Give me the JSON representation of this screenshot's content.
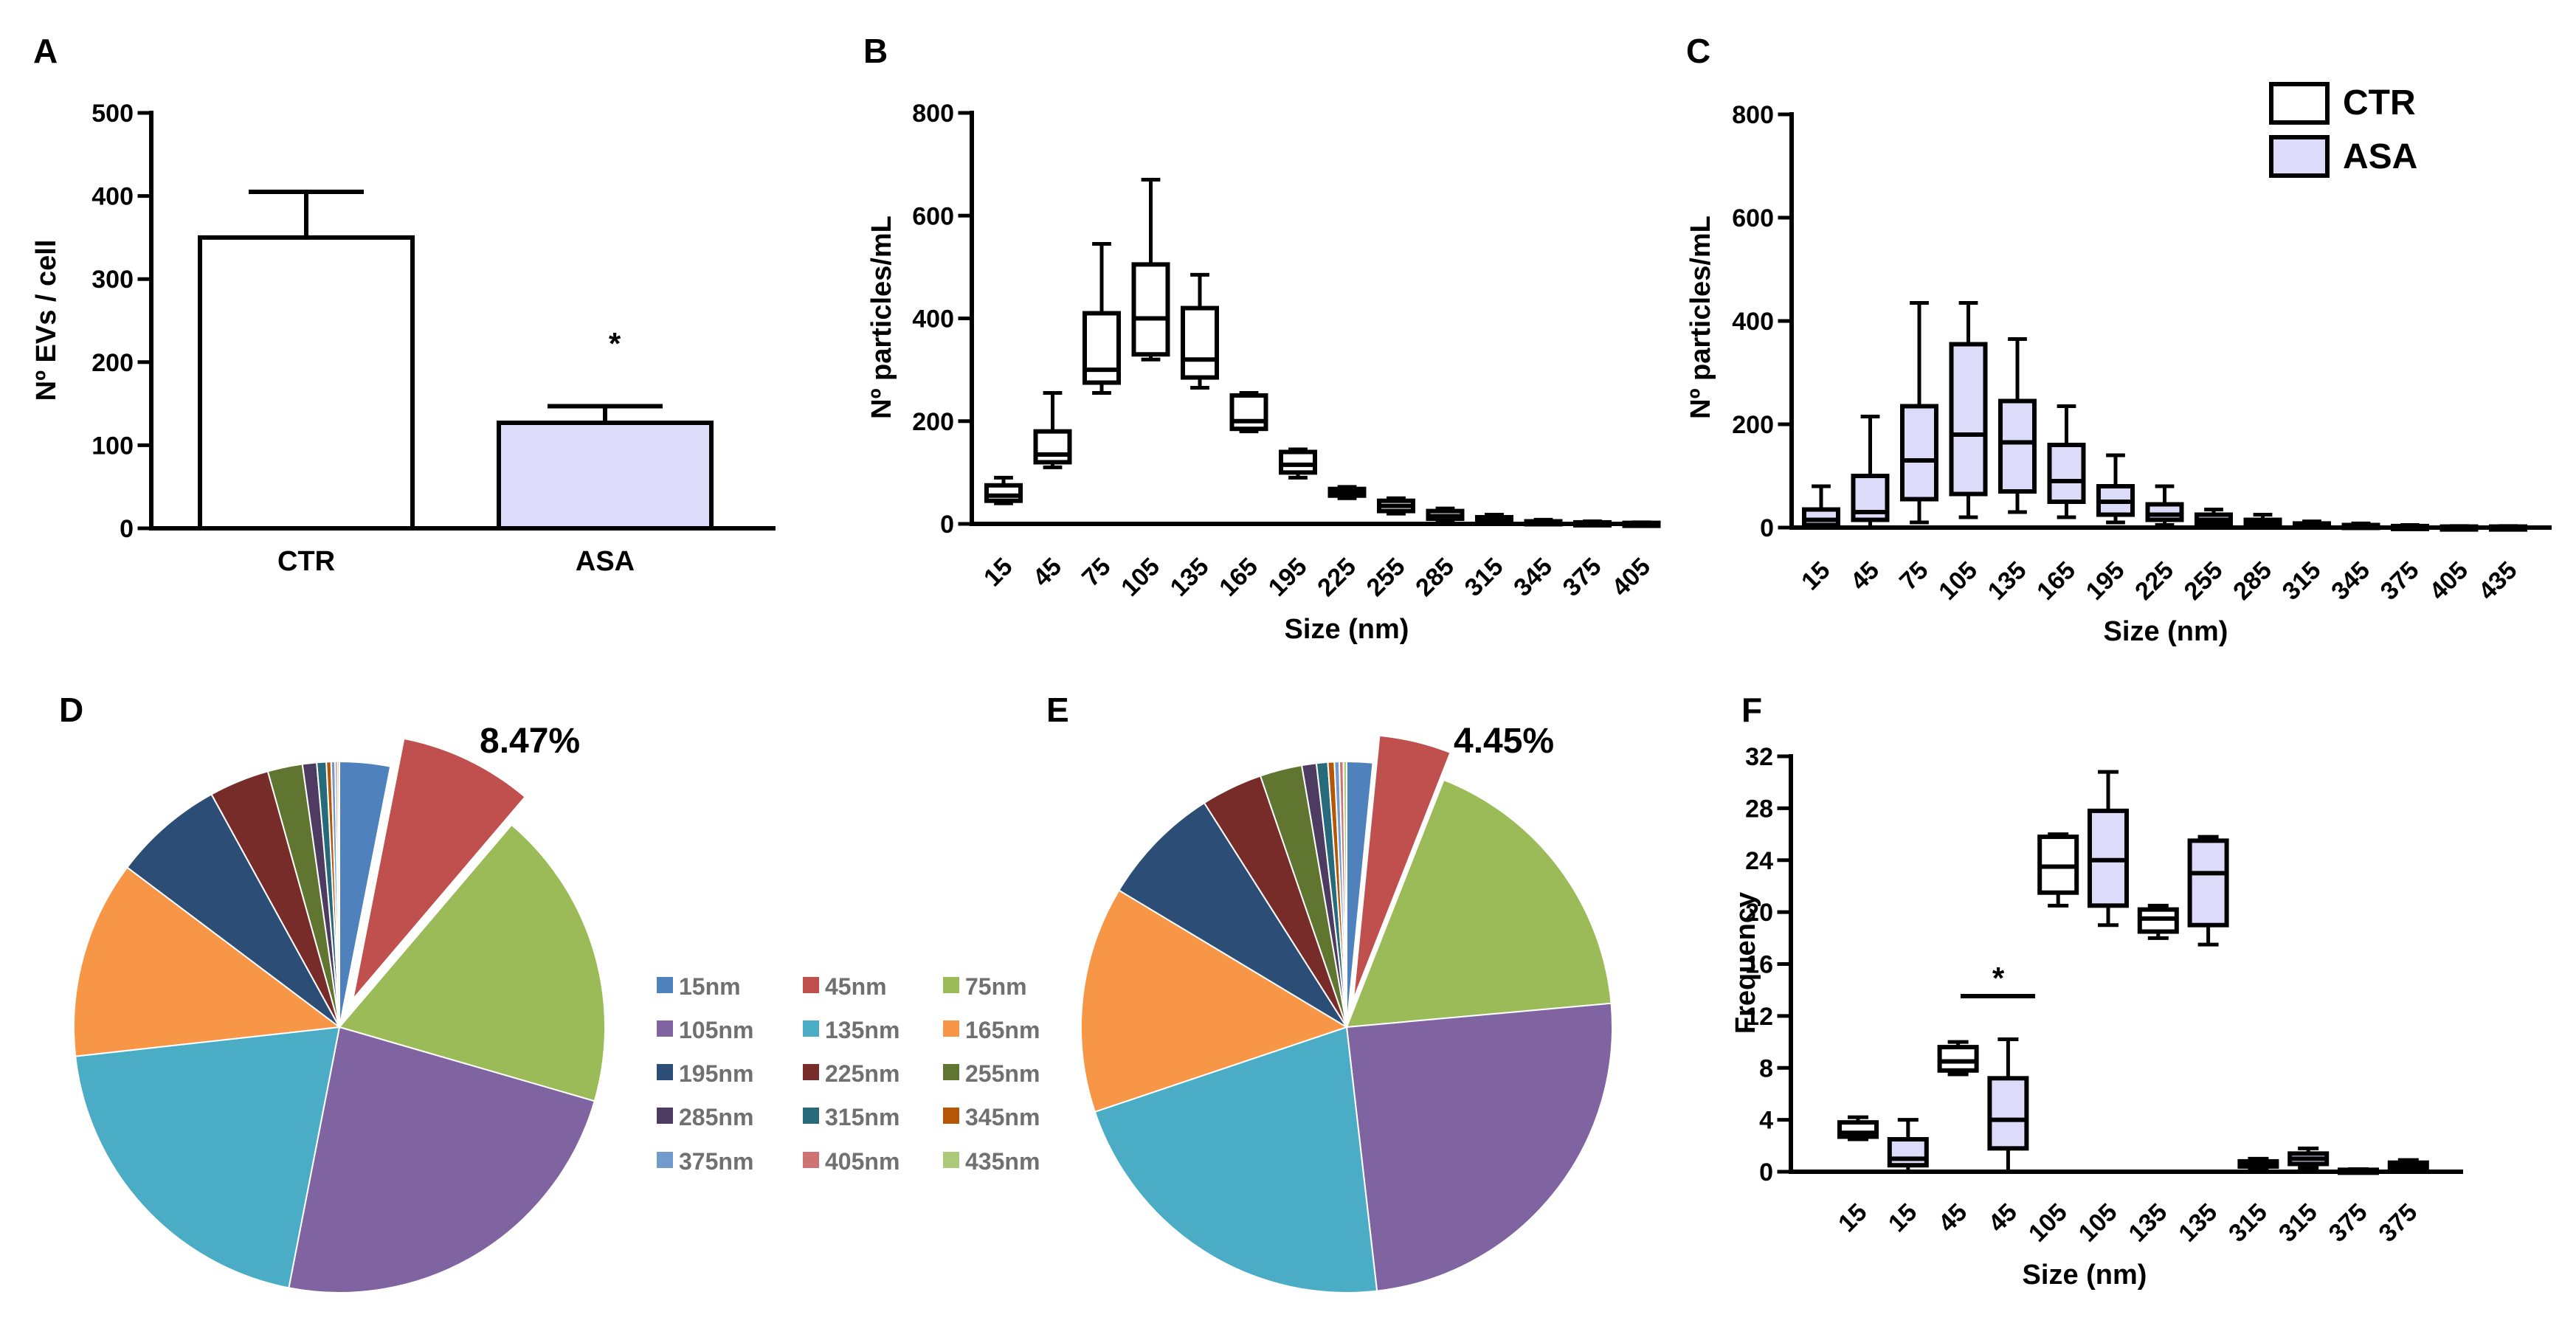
{
  "colors": {
    "ctr": "#ffffff",
    "asa": "#dcdcfa",
    "stroke": "#000000"
  },
  "chart_data": [
    {
      "panel": "A",
      "type": "bar",
      "ylabel": "Nº EVs / cell",
      "ylim": [
        0,
        500
      ],
      "yticks": [
        "0",
        "100",
        "200",
        "300",
        "400",
        "500"
      ],
      "categories": [
        "CTR",
        "ASA"
      ],
      "values": [
        350,
        127
      ],
      "errors": [
        55,
        20
      ],
      "annotation": "*"
    },
    {
      "panel": "B",
      "type": "box",
      "xlabel": "Size (nm)",
      "ylabel": "Nº particles/mL",
      "ylim": [
        0,
        800
      ],
      "yticks": [
        "0",
        "200",
        "400",
        "600",
        "800"
      ],
      "categories": [
        "15",
        "45",
        "75",
        "105",
        "135",
        "165",
        "195",
        "225",
        "255",
        "285",
        "315",
        "345",
        "375",
        "405"
      ],
      "boxes": [
        [
          40,
          45,
          55,
          75,
          90
        ],
        [
          110,
          120,
          135,
          180,
          255
        ],
        [
          255,
          275,
          300,
          410,
          545
        ],
        [
          320,
          330,
          400,
          505,
          670
        ],
        [
          265,
          285,
          320,
          420,
          485
        ],
        [
          180,
          185,
          200,
          250,
          255
        ],
        [
          90,
          100,
          115,
          140,
          145
        ],
        [
          50,
          55,
          62,
          68,
          72
        ],
        [
          20,
          25,
          35,
          45,
          50
        ],
        [
          5,
          10,
          15,
          25,
          30
        ],
        [
          2,
          5,
          9,
          13,
          18
        ],
        [
          0,
          1,
          3,
          5,
          8
        ],
        [
          0,
          0,
          1,
          3,
          5
        ],
        [
          0,
          0,
          1,
          2,
          3
        ]
      ]
    },
    {
      "panel": "C",
      "type": "box",
      "xlabel": "Size (nm)",
      "ylabel": "Nº particles/mL",
      "ylim": [
        0,
        800
      ],
      "yticks": [
        "0",
        "200",
        "400",
        "600",
        "800"
      ],
      "categories": [
        "15",
        "45",
        "75",
        "105",
        "135",
        "165",
        "195",
        "225",
        "255",
        "285",
        "315",
        "345",
        "375",
        "405",
        "435"
      ],
      "legend": [
        "CTR",
        "ASA"
      ],
      "boxes": [
        [
          0,
          5,
          15,
          35,
          80
        ],
        [
          0,
          15,
          30,
          100,
          215
        ],
        [
          10,
          55,
          130,
          235,
          435
        ],
        [
          20,
          65,
          180,
          355,
          435
        ],
        [
          30,
          70,
          165,
          245,
          365
        ],
        [
          20,
          50,
          90,
          160,
          235
        ],
        [
          10,
          25,
          50,
          80,
          140
        ],
        [
          5,
          15,
          25,
          45,
          80
        ],
        [
          2,
          8,
          15,
          25,
          35
        ],
        [
          0,
          3,
          8,
          15,
          25
        ],
        [
          0,
          1,
          4,
          8,
          12
        ],
        [
          0,
          1,
          3,
          5,
          8
        ],
        [
          0,
          0,
          1,
          3,
          5
        ],
        [
          0,
          0,
          1,
          2,
          3
        ],
        [
          0,
          0,
          1,
          2,
          3
        ]
      ]
    },
    {
      "panel": "D",
      "type": "pie",
      "highlight": "8.47%",
      "labels": [
        "15nm",
        "45nm",
        "75nm",
        "105nm",
        "135nm",
        "165nm",
        "195nm",
        "225nm",
        "255nm",
        "285nm",
        "315nm",
        "345nm",
        "375nm",
        "405nm",
        "435nm"
      ],
      "values": [
        3.2,
        8.47,
        19.0,
        24.5,
        21.0,
        12.5,
        7.0,
        3.8,
        2.2,
        0.9,
        0.6,
        0.3,
        0.25,
        0.15,
        0.12
      ],
      "slice_colors": [
        "#4f81bd",
        "#c0504d",
        "#9bbb59",
        "#8064a2",
        "#4bacc6",
        "#f79646",
        "#2c4d75",
        "#772c2a",
        "#5f7530",
        "#4d3b62",
        "#276a7c",
        "#b65708",
        "#729aca",
        "#cd7371",
        "#afc97a"
      ]
    },
    {
      "panel": "E",
      "type": "pie",
      "highlight": "4.45%",
      "values": [
        1.6,
        4.45,
        17.9,
        25.0,
        22.0,
        14.0,
        7.5,
        3.8,
        2.6,
        0.9,
        0.7,
        0.4,
        0.3,
        0.25,
        0.2
      ]
    },
    {
      "panel": "F",
      "type": "box",
      "xlabel": "Size (nm)",
      "ylabel": "Frequency",
      "ylim": [
        0,
        32
      ],
      "yticks": [
        "0",
        "4",
        "8",
        "12",
        "16",
        "20",
        "24",
        "28",
        "32"
      ],
      "categories": [
        "15",
        "15",
        "45",
        "45",
        "105",
        "105",
        "135",
        "135",
        "315",
        "315",
        "375",
        "375"
      ],
      "groups": [
        "CTR",
        "ASA",
        "CTR",
        "ASA",
        "CTR",
        "ASA",
        "CTR",
        "ASA",
        "CTR",
        "ASA",
        "CTR",
        "ASA"
      ],
      "boxes": [
        [
          2.5,
          2.7,
          3,
          3.8,
          4.2
        ],
        [
          0,
          0.5,
          1,
          2.5,
          4
        ],
        [
          7.5,
          7.8,
          8.5,
          9.6,
          10
        ],
        [
          0,
          1.8,
          4,
          7.2,
          10.2
        ],
        [
          20.5,
          21.5,
          23.5,
          25.8,
          26
        ],
        [
          19,
          20.5,
          24,
          27.8,
          30.8
        ],
        [
          18,
          18.5,
          19.5,
          20.2,
          20.5
        ],
        [
          17.5,
          19,
          23,
          25.5,
          25.8
        ],
        [
          0.2,
          0.4,
          0.6,
          0.8,
          1
        ],
        [
          0.3,
          0.6,
          1,
          1.4,
          1.8
        ],
        [
          0,
          0.05,
          0.1,
          0.15,
          0.2
        ],
        [
          0,
          0.2,
          0.4,
          0.7,
          0.9
        ]
      ],
      "annotation": "*"
    }
  ]
}
